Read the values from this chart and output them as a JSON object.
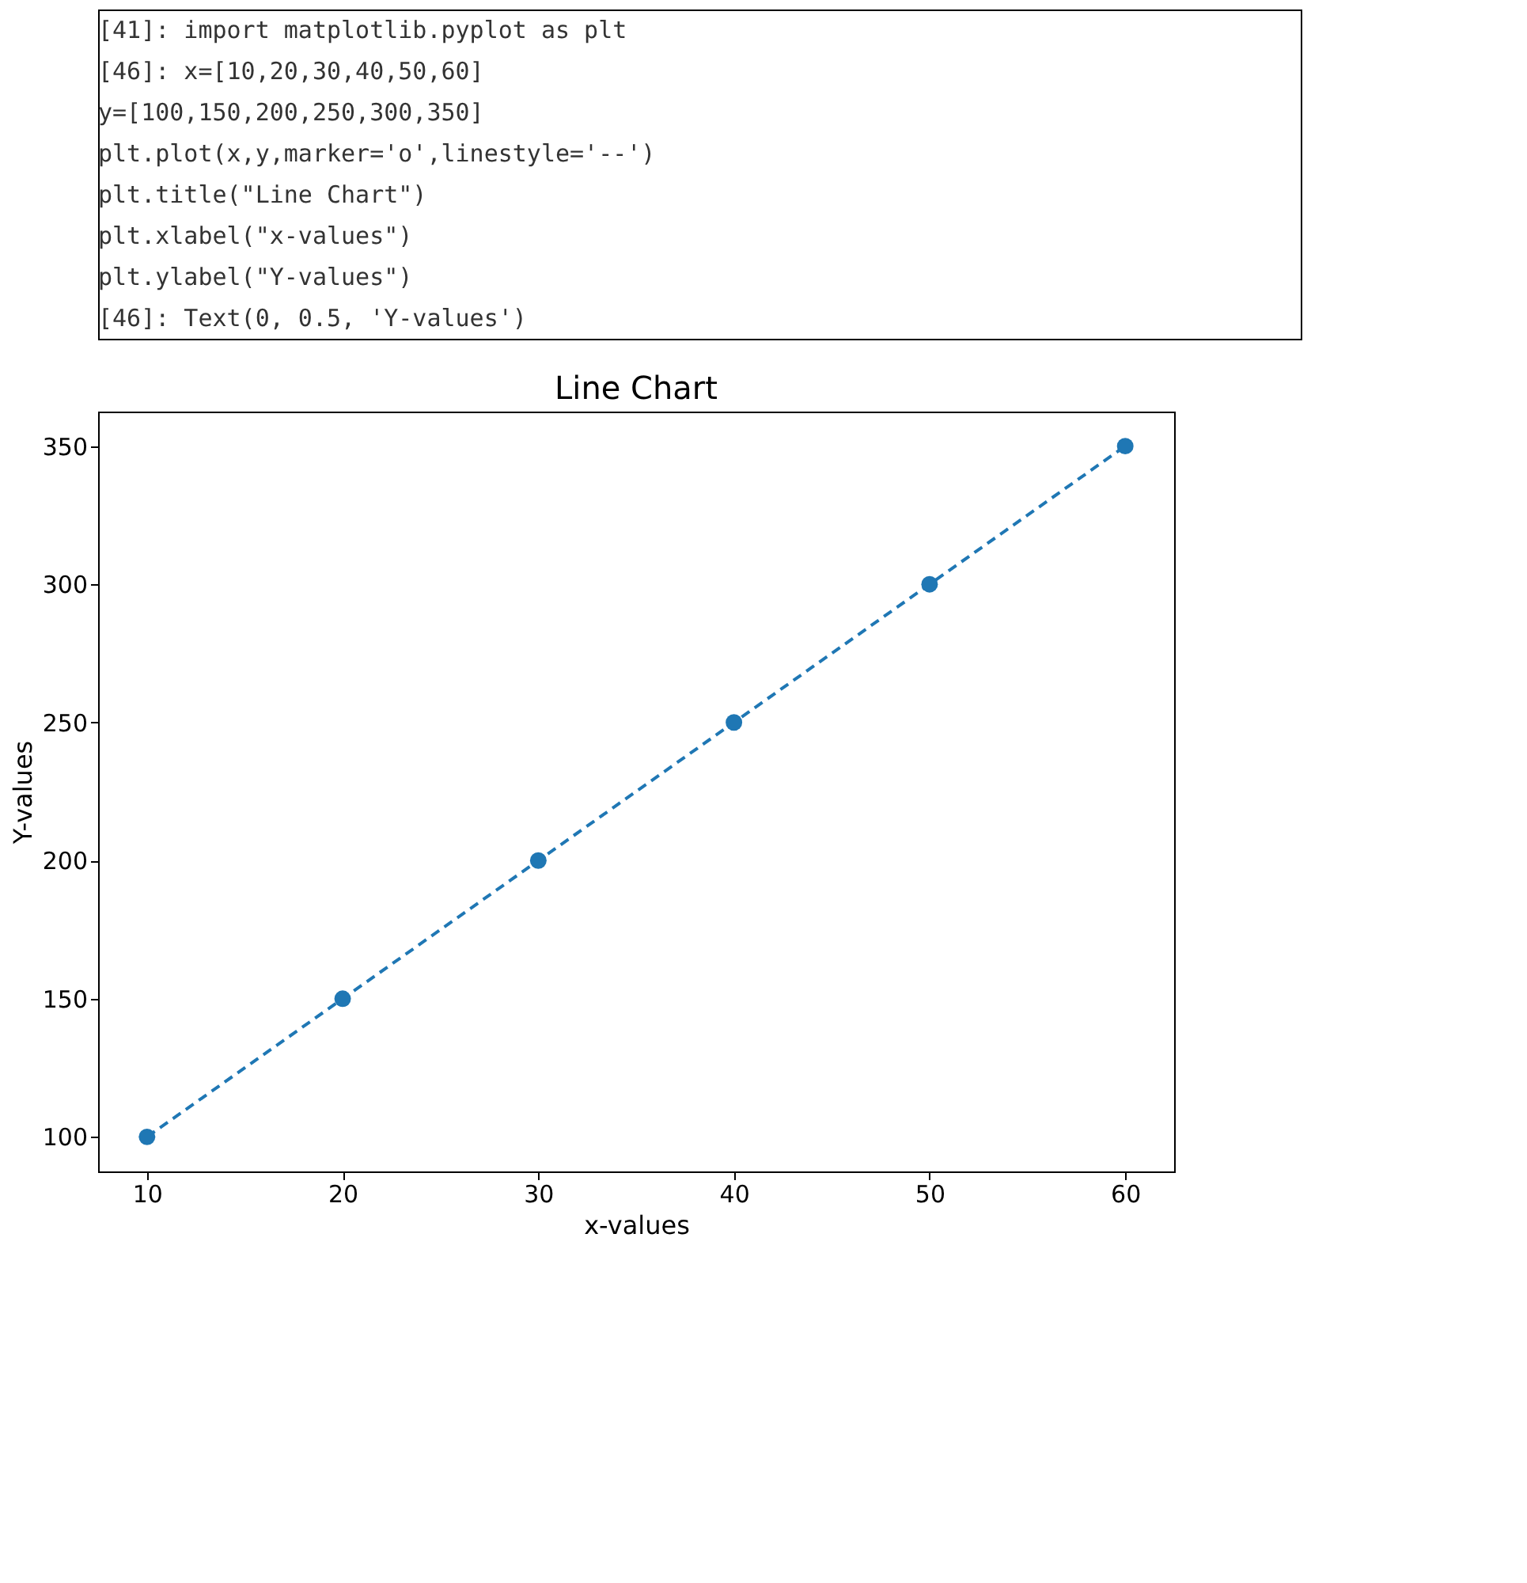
{
  "chart_data": {
    "type": "line",
    "title": "Line Chart",
    "xlabel": "x-values",
    "ylabel": "Y-values",
    "x": [
      10,
      20,
      30,
      40,
      50,
      60
    ],
    "series": [
      {
        "color": "#1f77b4",
        "values": [
          100,
          150,
          200,
          250,
          300,
          350
        ]
      }
    ],
    "xlim": [
      7.5,
      62.5
    ],
    "ylim": [
      87.5,
      362.5
    ],
    "xticks": [
      10,
      20,
      30,
      40,
      50,
      60
    ],
    "yticks": [
      100,
      150,
      200,
      250,
      300,
      350
    ],
    "marker": "circle",
    "line_style": "dashed",
    "grid": false,
    "legend": false,
    "annotations": [
      "[41]:  import matplotlib.pyplot as plt",
      "[46]:  x=[10,20,30,40,50,60]",
      "       y=[100,150,200,250,300,350]",
      "       plt.plot(x,y,marker='o',linestyle='--')",
      "       plt.title(\"Line Chart\")",
      "       plt.xlabel(\"x-values\")",
      "       plt.ylabel(\"Y-values\")",
      "[46]:  Text(0, 0.5, 'Y-values')"
    ]
  }
}
